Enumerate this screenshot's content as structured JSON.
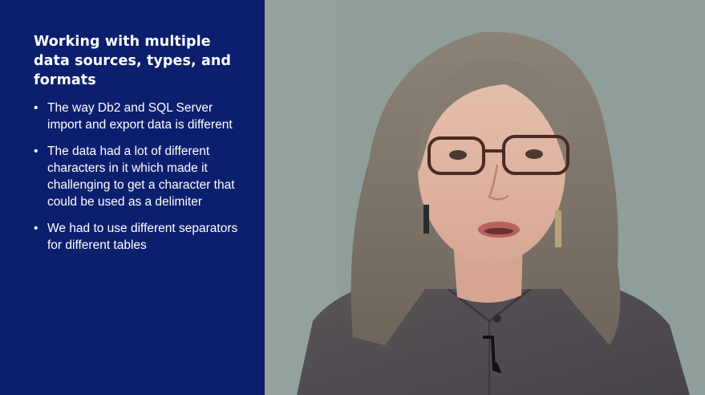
{
  "slide": {
    "title": "Working with multiple data sources, types, and formats",
    "bullet_char": "•",
    "bullets": [
      "The way Db2 and SQL Server import and export data is different",
      "The data had a lot of different characters in it which made it challenging to get a character that could be used as a delimiter",
      "We had to use different separators for different tables"
    ]
  },
  "colors": {
    "panel_background": "#0c1f6e",
    "panel_text": "#ffffff",
    "video_wall": "#8e9d99"
  }
}
